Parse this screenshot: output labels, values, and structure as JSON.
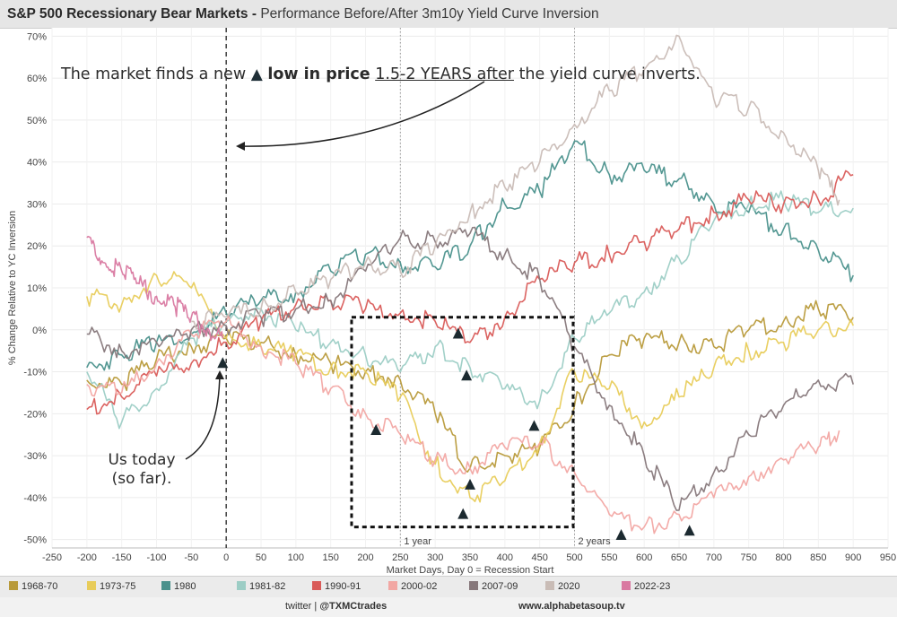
{
  "title": {
    "bold": "S&P 500 Recessionary Bear Markets -",
    "rest": "Performance Before/After 3m10y Yield Curve Inversion"
  },
  "annotations": {
    "main_pre": "The market finds a new",
    "main_tri": "▲",
    "main_bold": "low in price",
    "main_underline": "1.5-2 YEARS after",
    "main_post": "the yield curve inverts.",
    "today_line1": "Us today",
    "today_line2": "(so far).",
    "one_year": "1 year",
    "two_years": "2 years"
  },
  "legend": [
    {
      "label": "1968-70",
      "color": "#b89a3a"
    },
    {
      "label": "1973-75",
      "color": "#e8cc5a"
    },
    {
      "label": "1980",
      "color": "#4a918c"
    },
    {
      "label": "1981-82",
      "color": "#9ccdc5"
    },
    {
      "label": "1990-91",
      "color": "#d95b59"
    },
    {
      "label": "2000-02",
      "color": "#f2a7a3"
    },
    {
      "label": "2007-09",
      "color": "#86777a"
    },
    {
      "label": "2020",
      "color": "#c9bcb6"
    },
    {
      "label": "2022-23",
      "color": "#d979a1"
    }
  ],
  "footer": {
    "twitter_prefix": "twitter |",
    "twitter_handle": "@TXMCtrades",
    "site": "www.alphabetasoup.tv"
  },
  "chart_data": {
    "type": "line",
    "xlabel": "Market Days, Day 0 = Recession Start",
    "ylabel": "% Change Relative to YC Inversion",
    "xlim": [
      -250,
      950
    ],
    "ylim": [
      -52,
      72
    ],
    "x_ticks": [
      -250,
      -200,
      -150,
      -100,
      -50,
      0,
      50,
      100,
      150,
      200,
      250,
      300,
      350,
      400,
      450,
      500,
      550,
      600,
      650,
      700,
      750,
      800,
      850,
      900,
      950
    ],
    "x_tick_labels": [
      "-250",
      "-200",
      "-150",
      "-100",
      "-50",
      "0",
      "50",
      "100",
      "150",
      "200",
      "250",
      "300",
      "350",
      "400",
      "450",
      "500",
      "550",
      "600",
      "650",
      "700",
      "750",
      "800",
      "850",
      "900",
      "950"
    ],
    "y_ticks": [
      -50,
      -40,
      -30,
      -20,
      -10,
      0,
      10,
      20,
      30,
      40,
      50,
      60,
      70
    ],
    "y_tick_labels": [
      "-50%",
      "-40%",
      "-30%",
      "-20%",
      "-10%",
      "0%",
      "10%",
      "20%",
      "30%",
      "40%",
      "50%",
      "60%",
      "70%"
    ],
    "grid": true,
    "vlines": [
      {
        "x": 0,
        "style": "dashed",
        "label": ""
      },
      {
        "x": 250,
        "style": "dotted",
        "label": "1 year"
      },
      {
        "x": 500,
        "style": "dotted",
        "label": "2 years"
      }
    ],
    "box": {
      "x0": 180,
      "x1": 498,
      "y0": 3,
      "y1": -47
    },
    "series": [
      {
        "name": "1968-70",
        "x": [
          -200,
          -150,
          -100,
          -50,
          0,
          50,
          100,
          150,
          200,
          250,
          300,
          350,
          400,
          450,
          500,
          550,
          600,
          650,
          700,
          750,
          800,
          850,
          900
        ],
        "values": [
          -12,
          -13,
          -7,
          -4,
          -2,
          -3,
          -6,
          -8,
          -10,
          -12,
          -20,
          -33,
          -30,
          -28,
          -18,
          -6,
          -2,
          -3,
          -4,
          0,
          2,
          5,
          3
        ]
      },
      {
        "name": "1973-75",
        "x": [
          -200,
          -150,
          -100,
          -50,
          0,
          50,
          100,
          150,
          200,
          250,
          300,
          350,
          400,
          450,
          500,
          550,
          600,
          650,
          700,
          750,
          800,
          850,
          900
        ],
        "values": [
          8,
          6,
          13,
          10,
          -2,
          -4,
          -6,
          -9,
          -10,
          -16,
          -32,
          -40,
          -36,
          -27,
          -10,
          -14,
          -22,
          -16,
          -9,
          -5,
          -3,
          0,
          1
        ]
      },
      {
        "name": "1980",
        "x": [
          -200,
          -150,
          -100,
          -50,
          0,
          50,
          100,
          150,
          200,
          250,
          300,
          350,
          400,
          450,
          500,
          550,
          600,
          650,
          700,
          750,
          800,
          850,
          900
        ],
        "values": [
          -9,
          -6,
          -3,
          -1,
          4,
          7,
          9,
          14,
          18,
          16,
          15,
          20,
          30,
          33,
          45,
          37,
          38,
          36,
          30,
          28,
          24,
          19,
          13
        ]
      },
      {
        "name": "1981-82",
        "x": [
          -200,
          -150,
          -100,
          -50,
          0,
          50,
          100,
          150,
          200,
          250,
          300,
          350,
          400,
          450,
          500,
          550,
          600,
          650,
          700,
          750,
          800,
          850,
          900
        ],
        "values": [
          -10,
          -22,
          -14,
          -2,
          2,
          5,
          0,
          -3,
          -6,
          -10,
          -4,
          -9,
          -14,
          -17,
          -2,
          4,
          9,
          17,
          26,
          30,
          31,
          28,
          29
        ]
      },
      {
        "name": "1990-91",
        "x": [
          -200,
          -150,
          -100,
          -50,
          0,
          50,
          100,
          150,
          200,
          250,
          300,
          350,
          400,
          450,
          500,
          550,
          600,
          650,
          700,
          750,
          800,
          850,
          900
        ],
        "values": [
          -19,
          -16,
          -11,
          -8,
          -3,
          2,
          6,
          7,
          5,
          4,
          2,
          -3,
          3,
          12,
          16,
          18,
          21,
          24,
          28,
          31,
          30,
          31,
          37
        ]
      },
      {
        "name": "2000-02",
        "x": [
          -200,
          -150,
          -100,
          -50,
          0,
          50,
          100,
          150,
          200,
          250,
          300,
          350,
          400,
          450,
          500,
          550,
          600,
          650,
          700,
          750,
          800,
          850,
          880
        ],
        "values": [
          -13,
          -15,
          -8,
          -1,
          2,
          -4,
          -8,
          -14,
          -20,
          -25,
          -31,
          -33,
          -28,
          -27,
          -34,
          -44,
          -47,
          -44,
          -40,
          -35,
          -31,
          -28,
          -24
        ]
      },
      {
        "name": "2007-09",
        "x": [
          -200,
          -150,
          -100,
          -50,
          0,
          50,
          100,
          150,
          200,
          250,
          300,
          350,
          400,
          450,
          500,
          550,
          600,
          650,
          700,
          750,
          800,
          850,
          900
        ],
        "values": [
          -1,
          -5,
          -3,
          0,
          1,
          3,
          5,
          7,
          14,
          22,
          21,
          23,
          18,
          12,
          -4,
          -18,
          -30,
          -43,
          -34,
          -25,
          -18,
          -12,
          -13
        ]
      },
      {
        "name": "2020",
        "x": [
          -50,
          0,
          50,
          100,
          150,
          200,
          250,
          300,
          350,
          400,
          450,
          500,
          550,
          600,
          650,
          700,
          750,
          800,
          850,
          880
        ],
        "values": [
          2,
          3,
          5,
          9,
          12,
          16,
          14,
          20,
          28,
          34,
          40,
          49,
          57,
          62,
          70,
          55,
          53,
          47,
          38,
          31
        ]
      },
      {
        "name": "2022-23",
        "x": [
          -200,
          -175,
          -150,
          -125,
          -100,
          -75,
          -50,
          -25,
          -5
        ],
        "values": [
          22,
          16,
          14,
          11,
          8,
          6,
          3,
          0,
          -2
        ]
      }
    ],
    "markers": [
      {
        "x": -5,
        "y": -8
      },
      {
        "x": 215,
        "y": -24
      },
      {
        "x": 333,
        "y": -1
      },
      {
        "x": 345,
        "y": -11
      },
      {
        "x": 350,
        "y": -37
      },
      {
        "x": 340,
        "y": -44
      },
      {
        "x": 442,
        "y": -23
      },
      {
        "x": 567,
        "y": -49
      },
      {
        "x": 665,
        "y": -48
      }
    ]
  }
}
